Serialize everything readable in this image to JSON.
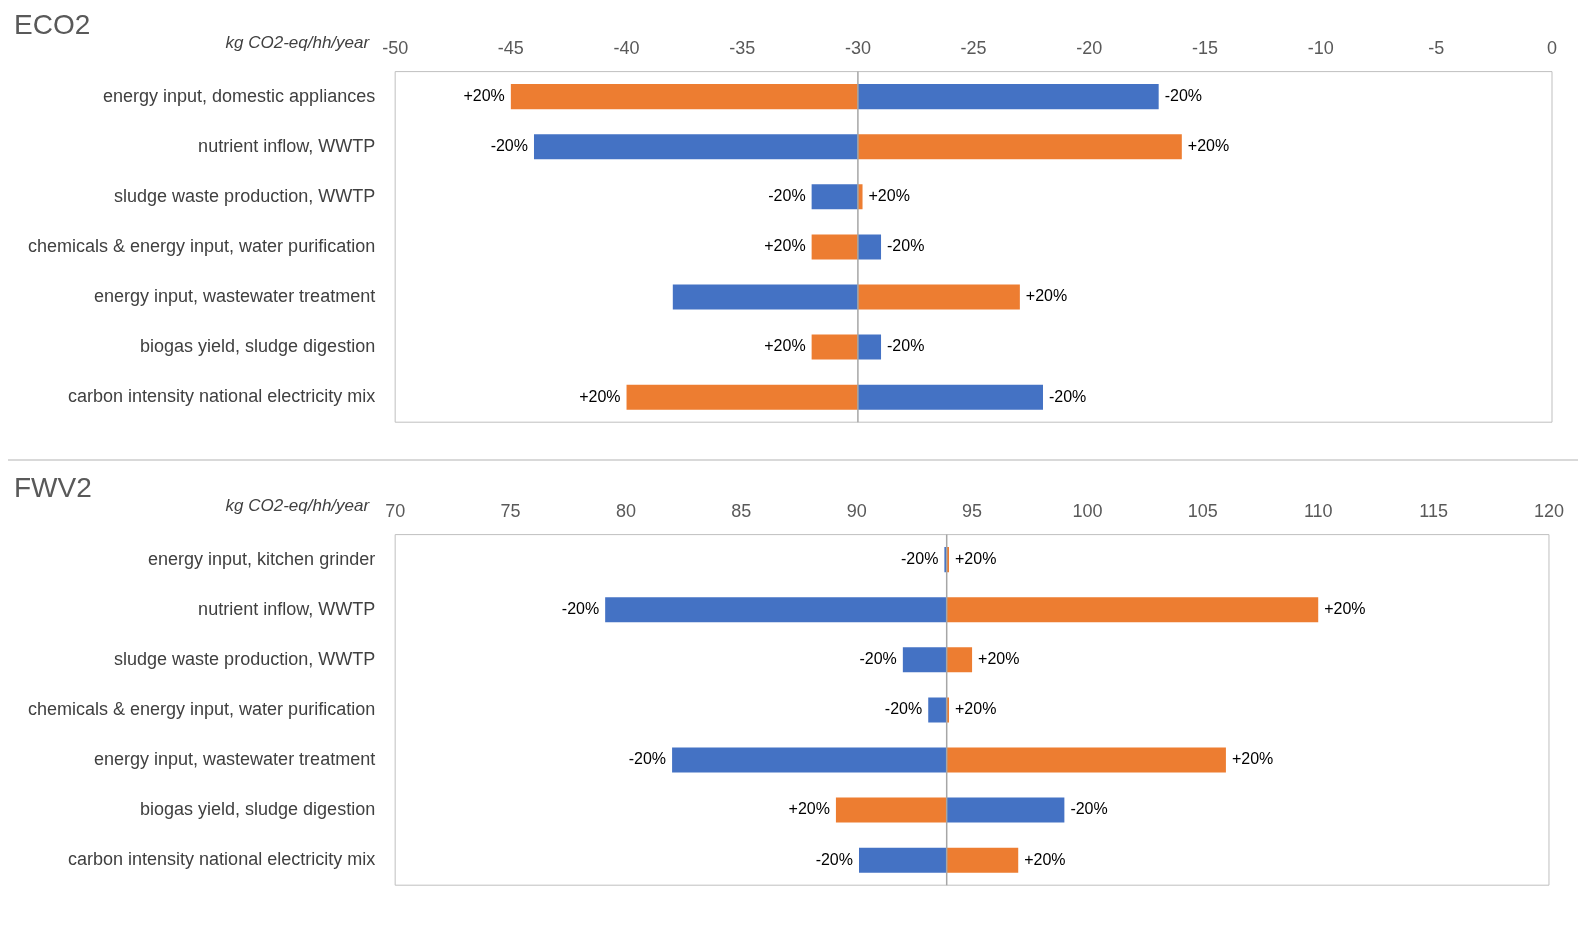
{
  "chart_data": [
    {
      "type": "bar",
      "orientation": "horizontal",
      "title": "ECO2",
      "xlabel": "kg CO2-eq/hh/year",
      "categories": [
        "energy input, domestic appliances",
        "nutrient inflow, WWTP",
        "sludge waste production, WWTP",
        "chemicals & energy input, water purification",
        "energy input, wastewater treatment",
        "biogas yield, sludge digestion",
        "carbon intensity national electricity mix"
      ],
      "series": [
        {
          "color": "#4472c4",
          "base": [
            -30,
            -30,
            -30,
            -30,
            -30,
            -30,
            -30
          ],
          "values": [
            13,
            -14,
            -2,
            1,
            -8,
            1,
            8
          ]
        },
        {
          "color": "#ed7d31",
          "base": [
            -30,
            -30,
            -30,
            -30,
            -30,
            -30,
            -30
          ],
          "values": [
            -15,
            14,
            0.2,
            -2,
            7,
            -2,
            -10
          ]
        }
      ],
      "xlim": [
        -50,
        0
      ],
      "xticks": [
        -50,
        -45,
        -40,
        -35,
        -30,
        -25,
        -20,
        -15,
        -10,
        -5,
        0
      ],
      "grid": false,
      "legend": false,
      "ref_lines": [
        {
          "axis": "x",
          "value": -30,
          "color": "#a6a6a6"
        }
      ],
      "annotations": [
        {
          "text": "-20%",
          "x": -17,
          "y": "energy input, domestic appliances"
        },
        {
          "text": "+20%",
          "x": -45,
          "y": "energy input, domestic appliances"
        },
        {
          "text": "-20%",
          "x": -44,
          "y": "nutrient inflow, WWTP"
        },
        {
          "text": "+20%",
          "x": -16,
          "y": "nutrient inflow, WWTP"
        },
        {
          "text": "-20%",
          "x": -32,
          "y": "sludge waste production, WWTP"
        },
        {
          "text": "+20%",
          "x": -29.8,
          "y": "sludge waste production, WWTP"
        },
        {
          "text": "-20%",
          "x": -29,
          "y": "chemicals & energy input, water purification"
        },
        {
          "text": "+20%",
          "x": -32,
          "y": "chemicals & energy input, water purification"
        },
        {
          "text": "+20%",
          "x": -23,
          "y": "energy input, wastewater treatment"
        },
        {
          "text": "-20%",
          "x": -29,
          "y": "biogas yield, sludge digestion"
        },
        {
          "text": "+20%",
          "x": -32,
          "y": "biogas yield, sludge digestion"
        },
        {
          "text": "-20%",
          "x": -22,
          "y": "carbon intensity national electricity mix"
        },
        {
          "text": "+20%",
          "x": -40,
          "y": "carbon intensity national electricity mix"
        }
      ]
    },
    {
      "type": "bar",
      "orientation": "horizontal",
      "title": "FWV2",
      "xlabel": "kg CO2-eq/hh/year",
      "categories": [
        "energy input, kitchen grinder",
        "nutrient inflow, WWTP",
        "sludge waste production, WWTP",
        "chemicals & energy input, water purification",
        "energy input, wastewater treatment",
        "biogas yield, sludge digestion",
        "carbon intensity national electricity mix"
      ],
      "series": [
        {
          "color": "#4472c4",
          "base": [
            93.9,
            93.9,
            93.9,
            93.9,
            93.9,
            93.9,
            93.9
          ],
          "values": [
            -0.1,
            -14.8,
            -1.9,
            -0.8,
            -11.9,
            5.1,
            -3.8
          ]
        },
        {
          "color": "#ed7d31",
          "base": [
            93.9,
            93.9,
            93.9,
            93.9,
            93.9,
            93.9,
            93.9
          ],
          "values": [
            0.1,
            16.1,
            1.1,
            0.1,
            12.1,
            -4.8,
            3.1
          ]
        }
      ],
      "xlim": [
        70,
        120
      ],
      "xticks": [
        70,
        75,
        80,
        85,
        90,
        95,
        100,
        105,
        110,
        115,
        120
      ],
      "grid": false,
      "legend": false,
      "ref_lines": [
        {
          "axis": "x",
          "value": 93.9,
          "color": "#a6a6a6"
        }
      ],
      "annotations": [
        {
          "text": "-20%",
          "x": 93.8,
          "y": "energy input, kitchen grinder"
        },
        {
          "text": "+20%",
          "x": 94,
          "y": "energy input, kitchen grinder"
        },
        {
          "text": "-20%",
          "x": 79.1,
          "y": "nutrient inflow, WWTP"
        },
        {
          "text": "+20%",
          "x": 110,
          "y": "nutrient inflow, WWTP"
        },
        {
          "text": "-20%",
          "x": 92,
          "y": "sludge waste production, WWTP"
        },
        {
          "text": "+20%",
          "x": 95,
          "y": "sludge waste production, WWTP"
        },
        {
          "text": "-20%",
          "x": 93.1,
          "y": "chemicals & energy input, water purification"
        },
        {
          "text": "+20%",
          "x": 94,
          "y": "chemicals & energy input, water purification"
        },
        {
          "text": "-20%",
          "x": 82,
          "y": "energy input, wastewater treatment"
        },
        {
          "text": "+20%",
          "x": 106,
          "y": "energy input, wastewater treatment"
        },
        {
          "text": "-20%",
          "x": 99,
          "y": "biogas yield, sludge digestion"
        },
        {
          "text": "+20%",
          "x": 89.1,
          "y": "biogas yield, sludge digestion"
        },
        {
          "text": "-20%",
          "x": 90.1,
          "y": "carbon intensity national electricity mix"
        },
        {
          "text": "+20%",
          "x": 97,
          "y": "carbon intensity national electricity mix"
        }
      ]
    }
  ]
}
